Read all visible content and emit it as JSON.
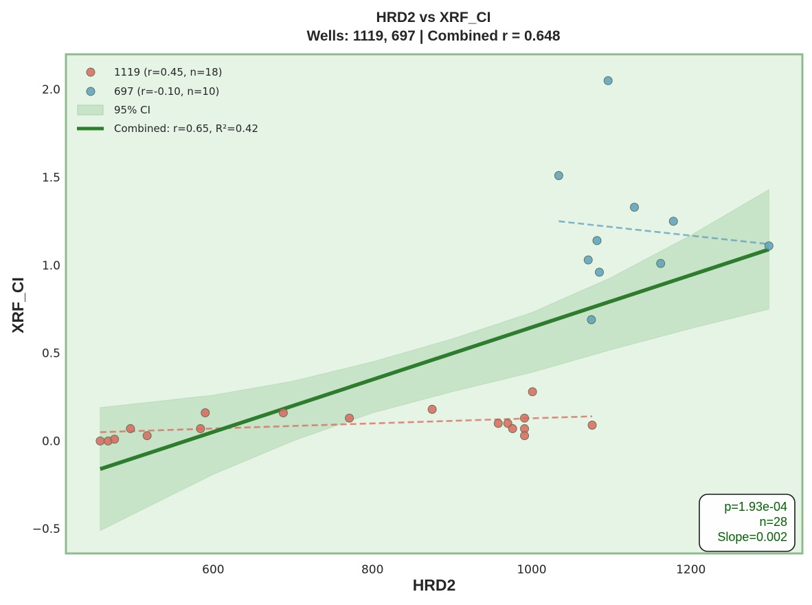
{
  "chart_data": {
    "type": "scatter",
    "title": "HRD2 vs XRF_CI",
    "subtitle": "Wells: 1119, 697 | Combined r = 0.648",
    "xlabel": "HRD2",
    "ylabel": "XRF_CI",
    "xlim": [
      415,
      1340
    ],
    "ylim": [
      -0.64,
      2.2
    ],
    "xticks": [
      600,
      800,
      1000,
      1200
    ],
    "yticks": [
      -0.5,
      0.0,
      0.5,
      1.0,
      1.5,
      2.0
    ],
    "xtick_labels": [
      "600",
      "800",
      "1000",
      "1200"
    ],
    "ytick_labels": [
      "−0.5",
      "0.0",
      "0.5",
      "1.0",
      "1.5",
      "2.0"
    ],
    "grid": false,
    "background_color": "#e6f4e6",
    "frame_color": "#8dbb8d",
    "legend_position": "top-left",
    "series": [
      {
        "name": "1119 (r=0.45, n=18)",
        "color": "#d9675a",
        "points": [
          {
            "x": 458,
            "y": 0.0
          },
          {
            "x": 468,
            "y": 0.0
          },
          {
            "x": 476,
            "y": 0.01
          },
          {
            "x": 496,
            "y": 0.07
          },
          {
            "x": 517,
            "y": 0.03
          },
          {
            "x": 584,
            "y": 0.07
          },
          {
            "x": 590,
            "y": 0.16
          },
          {
            "x": 688,
            "y": 0.16
          },
          {
            "x": 771,
            "y": 0.13
          },
          {
            "x": 875,
            "y": 0.18
          },
          {
            "x": 958,
            "y": 0.1
          },
          {
            "x": 970,
            "y": 0.1
          },
          {
            "x": 976,
            "y": 0.07
          },
          {
            "x": 991,
            "y": 0.13
          },
          {
            "x": 991,
            "y": 0.07
          },
          {
            "x": 991,
            "y": 0.03
          },
          {
            "x": 1001,
            "y": 0.28
          },
          {
            "x": 1076,
            "y": 0.09
          }
        ],
        "trend": {
          "x": [
            458,
            1076
          ],
          "y": [
            0.05,
            0.14
          ]
        }
      },
      {
        "name": "697 (r=-0.10, n=10)",
        "color": "#5b9fbd",
        "points": [
          {
            "x": 1034,
            "y": 1.51
          },
          {
            "x": 1071,
            "y": 1.03
          },
          {
            "x": 1075,
            "y": 0.69
          },
          {
            "x": 1082,
            "y": 1.14
          },
          {
            "x": 1085,
            "y": 0.96
          },
          {
            "x": 1096,
            "y": 2.05
          },
          {
            "x": 1129,
            "y": 1.33
          },
          {
            "x": 1162,
            "y": 1.01
          },
          {
            "x": 1178,
            "y": 1.25
          },
          {
            "x": 1298,
            "y": 1.11
          }
        ],
        "trend": {
          "x": [
            1034,
            1298
          ],
          "y": [
            1.25,
            1.12
          ]
        }
      }
    ],
    "combined_fit": {
      "label": "Combined: r=0.65, R²=0.42",
      "color": "#2e7d2e",
      "x": [
        458,
        1298
      ],
      "y": [
        -0.16,
        1.09
      ]
    },
    "confidence_band": {
      "label": "95% CI",
      "color": "#a9d4a9",
      "x": [
        458,
        600,
        700,
        800,
        900,
        1000,
        1100,
        1200,
        1298
      ],
      "upper": [
        0.19,
        0.26,
        0.34,
        0.45,
        0.58,
        0.73,
        0.93,
        1.17,
        1.43
      ],
      "lower": [
        -0.51,
        -0.19,
        0.0,
        0.16,
        0.28,
        0.39,
        0.52,
        0.64,
        0.75
      ]
    },
    "stats_box": {
      "lines": [
        "p=1.93e-04",
        "n=28",
        "Slope=0.002"
      ],
      "text_color": "#006400",
      "position": "bottom-right"
    }
  }
}
